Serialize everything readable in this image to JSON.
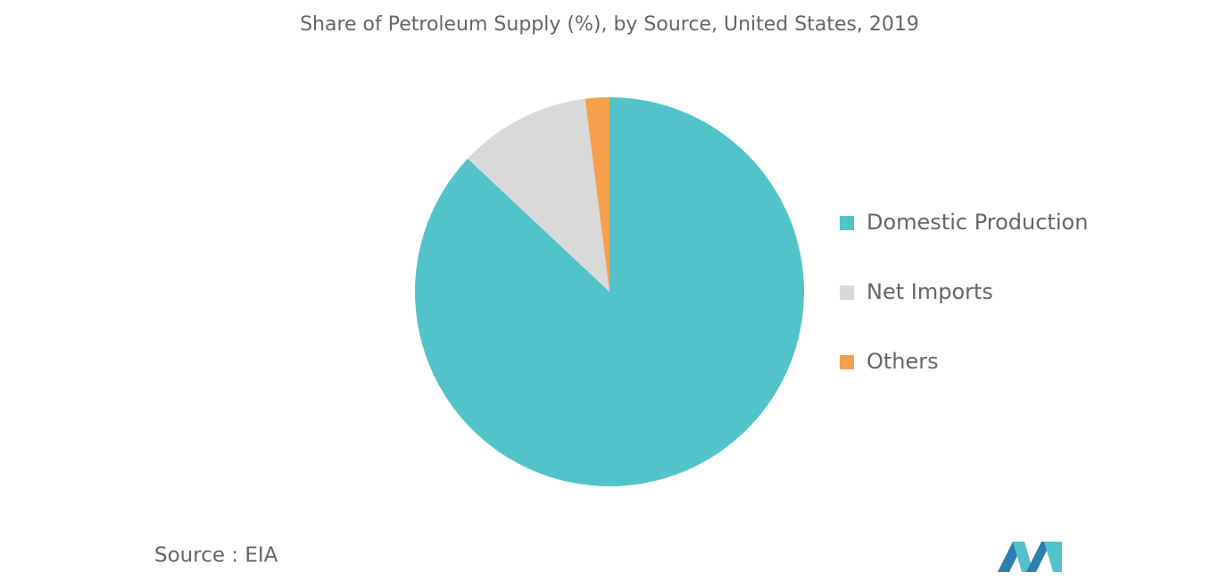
{
  "chart_data": {
    "type": "pie",
    "title": "Share of Petroleum Supply (%), by Source, United States, 2019",
    "categories": [
      "Domestic Production",
      "Net Imports",
      "Others"
    ],
    "values": [
      87,
      11,
      2
    ],
    "colors": [
      "#52c3c9",
      "#d9d9d9",
      "#f6a04d"
    ],
    "source": "Source : EIA"
  }
}
